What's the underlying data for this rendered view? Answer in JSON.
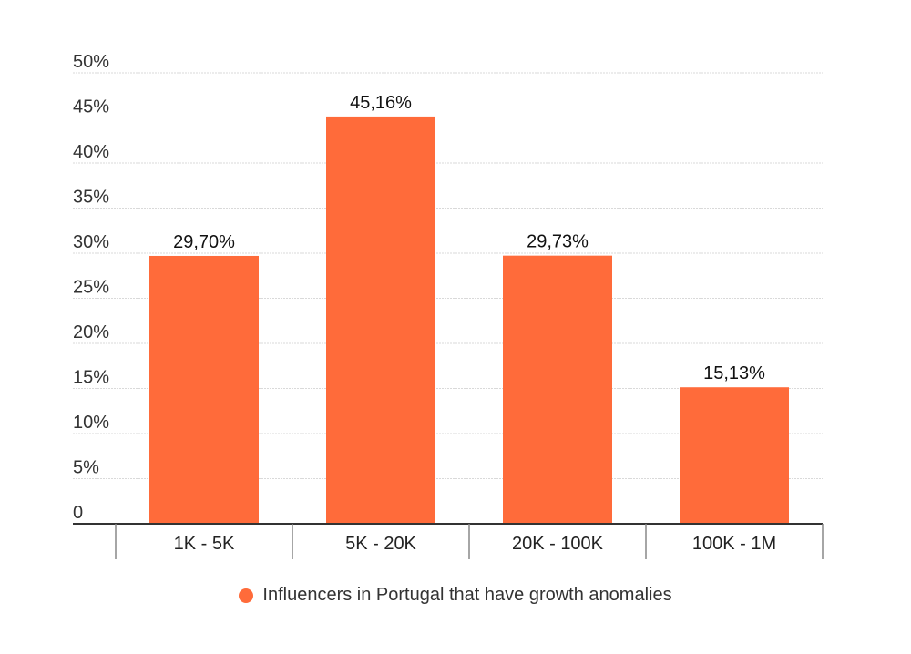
{
  "chart_data": {
    "type": "bar",
    "categories": [
      "1K - 5K",
      "5K - 20K",
      "20K - 100K",
      "100K - 1M"
    ],
    "series": [
      {
        "name": "Influencers in Portugal that have growth anomalies",
        "values": [
          29.7,
          45.16,
          29.73,
          15.13
        ],
        "data_labels": [
          "29,70%",
          "45,16%",
          "29,73%",
          "15,13%"
        ],
        "color": "#FF6B3A"
      }
    ],
    "y_ticks": [
      "0",
      "5%",
      "10%",
      "15%",
      "20%",
      "25%",
      "30%",
      "35%",
      "40%",
      "45%",
      "50%"
    ],
    "ylim": [
      0,
      50
    ],
    "grid": true,
    "legend_position": "bottom"
  }
}
